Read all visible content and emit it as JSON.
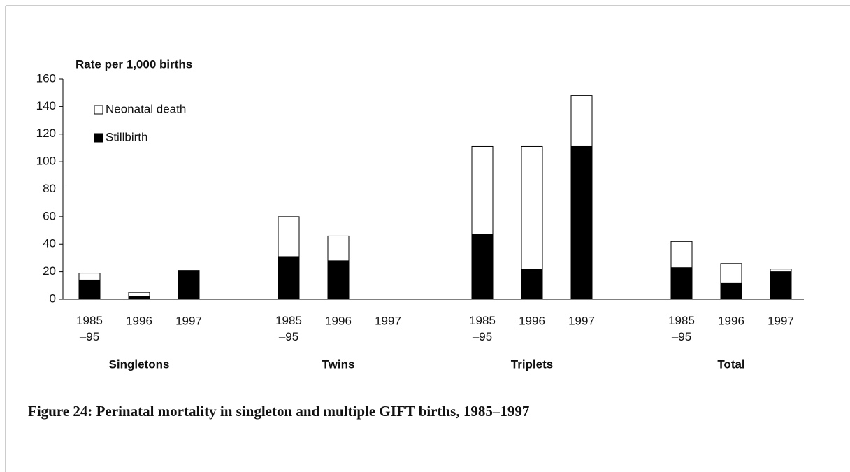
{
  "chart_data": {
    "type": "stacked-bar",
    "y_label": "Rate per 1,000 births",
    "caption": "Figure 24: Perinatal mortality in singleton and multiple GIFT births, 1985–1997",
    "categories": [
      "1985\n–95",
      "1996",
      "1997",
      "1985\n–95",
      "1996",
      "1997",
      "1985\n–95",
      "1996",
      "1997",
      "1985\n–95",
      "1996",
      "1997"
    ],
    "groups": [
      "Singletons",
      "Twins",
      "Triplets",
      "Total"
    ],
    "series": [
      {
        "name": "Stillbirth",
        "color": "#000000",
        "values": [
          14,
          2,
          21,
          31,
          28,
          0,
          47,
          22,
          111,
          23,
          12,
          20
        ]
      },
      {
        "name": "Neonatal death",
        "color": "#ffffff",
        "values": [
          5,
          3,
          0,
          29,
          18,
          0,
          64,
          89,
          37,
          19,
          14,
          2
        ]
      }
    ],
    "ylim": [
      0,
      160
    ],
    "yticks": [
      0,
      20,
      40,
      60,
      80,
      100,
      120,
      140,
      160
    ],
    "grid": false,
    "legend": "upper left"
  }
}
